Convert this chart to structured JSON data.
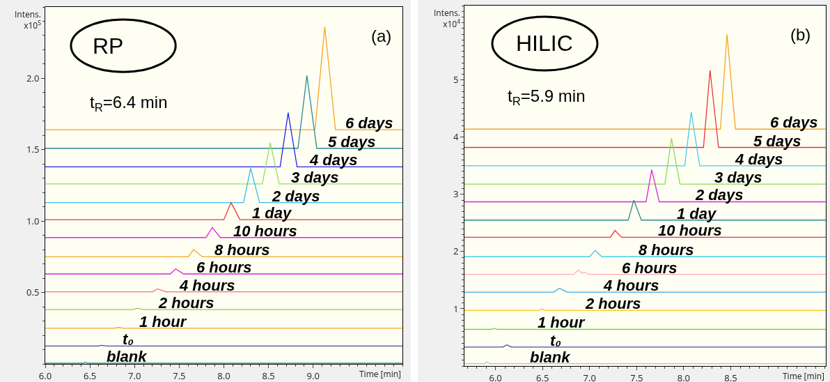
{
  "chart_data": [
    {
      "type": "line",
      "xlabel": "Time [min]",
      "ylabel": "Intens.\nx10$^{5}$",
      "annotations": [
        "RP",
        "(a)",
        "t$_{R}$=6.4 min"
      ],
      "xlim": [
        6.0,
        10.0
      ],
      "xticks": [
        {
          "value": 6,
          "label": "6.0"
        },
        6.5,
        {
          "value": 7,
          "label": "7.0"
        },
        7.5,
        {
          "value": 8,
          "label": "8.0"
        },
        8.5,
        {
          "value": 9,
          "label": "9.0"
        }
      ],
      "ylim": [
        0,
        2.5
      ],
      "yticks": [
        0.5,
        {
          "value": 1,
          "label": "1.0"
        },
        1.5,
        {
          "value": 2,
          "label": "2.0"
        }
      ],
      "grid": false,
      "legend": false,
      "marker": "none",
      "line_style": "solid",
      "series": [
        {
          "name": "6 days",
          "color": "#f5a623",
          "x": [
            6.0,
            9.02,
            9.13,
            9.25,
            10.0
          ],
          "values": [
            1.64,
            1.64,
            2.36,
            1.64,
            1.64
          ]
        },
        {
          "name": "5 days",
          "color": "#2a8c8c",
          "x": [
            6.0,
            8.83,
            8.93,
            9.04,
            10.0
          ],
          "values": [
            1.51,
            1.51,
            2.02,
            1.51,
            1.51
          ]
        },
        {
          "name": "4 days",
          "color": "#2222ee",
          "x": [
            6.0,
            8.63,
            8.72,
            8.82,
            10.0
          ],
          "values": [
            1.38,
            1.38,
            1.76,
            1.38,
            1.38
          ]
        },
        {
          "name": "3 days",
          "color": "#90e060",
          "x": [
            6.0,
            8.43,
            8.52,
            8.62,
            10.0
          ],
          "values": [
            1.26,
            1.26,
            1.55,
            1.26,
            1.26
          ]
        },
        {
          "name": "2 days",
          "color": "#33bbee",
          "x": [
            6.0,
            8.22,
            8.3,
            8.4,
            10.0
          ],
          "values": [
            1.13,
            1.13,
            1.37,
            1.13,
            1.13
          ]
        },
        {
          "name": "1 day",
          "color": "#ee3333",
          "x": [
            6.0,
            8.0,
            8.08,
            8.18,
            10.0
          ],
          "values": [
            1.01,
            1.01,
            1.13,
            1.01,
            1.01
          ]
        },
        {
          "name": "10 hours",
          "color": "#dd22dd",
          "x": [
            6.0,
            7.8,
            7.87,
            7.96,
            10.0
          ],
          "values": [
            0.885,
            0.885,
            0.955,
            0.885,
            0.885
          ]
        },
        {
          "name": "8 hours",
          "color": "#f5a623",
          "x": [
            6.0,
            7.6,
            7.66,
            7.76,
            10.0
          ],
          "values": [
            0.75,
            0.75,
            0.8,
            0.75,
            0.75
          ]
        },
        {
          "name": "6 hours",
          "color": "#dd22dd",
          "x": [
            6.0,
            7.4,
            7.46,
            7.55,
            10.0
          ],
          "values": [
            0.63,
            0.63,
            0.665,
            0.63,
            0.63
          ]
        },
        {
          "name": "4 hours",
          "color": "#f07070",
          "x": [
            6.0,
            7.2,
            7.26,
            7.35,
            10.0
          ],
          "values": [
            0.505,
            0.505,
            0.525,
            0.505,
            0.505
          ]
        },
        {
          "name": "2 hours",
          "color": "#99cc33",
          "x": [
            6.0,
            6.98,
            7.03,
            7.1,
            10.0
          ],
          "values": [
            0.38,
            0.38,
            0.39,
            0.38,
            0.38
          ]
        },
        {
          "name": "1 hour",
          "color": "#f5a623",
          "x": [
            6.0,
            6.77,
            6.82,
            6.88,
            10.0
          ],
          "values": [
            0.25,
            0.25,
            0.255,
            0.25,
            0.25
          ]
        },
        {
          "name": "t₀",
          "color": "#4a4aa0",
          "x": [
            6.0,
            6.59,
            6.63,
            6.69,
            10.0
          ],
          "values": [
            0.125,
            0.125,
            0.13,
            0.125,
            0.125
          ]
        },
        {
          "name": "blank",
          "color": "#2a9a8a",
          "x": [
            6.0,
            6.43,
            6.45,
            6.47,
            10.0
          ],
          "values": [
            0.005,
            0.005,
            0.012,
            0.005,
            0.005
          ]
        }
      ]
    },
    {
      "type": "line",
      "xlabel": "Time [min]",
      "ylabel": "Intens.\nx10$^{4}$",
      "annotations": [
        "HILIC",
        "(b)",
        "t$_{R}$=5.9 min"
      ],
      "xlim": [
        5.67,
        9.51
      ],
      "xticks": [
        {
          "value": 6,
          "label": "6.0"
        },
        6.5,
        {
          "value": 7,
          "label": "7.0"
        },
        7.5,
        {
          "value": 8,
          "label": "8.0"
        },
        8.5
      ],
      "ylim": [
        0,
        6.3
      ],
      "yticks": [
        1,
        2,
        3,
        4,
        5
      ],
      "grid": false,
      "legend": false,
      "marker": "none",
      "line_style": "solid",
      "series": [
        {
          "name": "6 days",
          "color": "#f5a623",
          "x": [
            5.67,
            8.39,
            8.46,
            8.55,
            9.51
          ],
          "values": [
            4.14,
            4.14,
            5.8,
            4.14,
            4.14
          ]
        },
        {
          "name": "5 days",
          "color": "#ee3333",
          "x": [
            5.67,
            8.21,
            8.28,
            8.37,
            9.51
          ],
          "values": [
            3.82,
            3.82,
            5.17,
            3.82,
            3.82
          ]
        },
        {
          "name": "4 days",
          "color": "#44ccee",
          "x": [
            5.67,
            8.01,
            8.08,
            8.17,
            9.51
          ],
          "values": [
            3.5,
            3.5,
            4.44,
            3.5,
            3.5
          ]
        },
        {
          "name": "3 days",
          "color": "#88dd55",
          "x": [
            5.67,
            7.8,
            7.87,
            7.96,
            9.51
          ],
          "values": [
            3.18,
            3.18,
            3.98,
            3.18,
            3.18
          ]
        },
        {
          "name": "2 days",
          "color": "#dd22dd",
          "x": [
            5.67,
            7.6,
            7.66,
            7.74,
            9.51
          ],
          "values": [
            2.87,
            2.87,
            3.43,
            2.87,
            2.87
          ]
        },
        {
          "name": "1 day",
          "color": "#2a8c8c",
          "x": [
            5.67,
            7.41,
            7.47,
            7.55,
            9.51
          ],
          "values": [
            2.55,
            2.55,
            2.9,
            2.55,
            2.55
          ]
        },
        {
          "name": "10 hours",
          "color": "#ee3333",
          "x": [
            5.67,
            7.22,
            7.27,
            7.34,
            9.51
          ],
          "values": [
            2.25,
            2.25,
            2.37,
            2.25,
            2.25
          ]
        },
        {
          "name": "8 hours",
          "color": "#44ccee",
          "x": [
            5.67,
            7.0,
            7.06,
            7.13,
            9.51
          ],
          "values": [
            1.91,
            1.91,
            2.02,
            1.91,
            1.91
          ]
        },
        {
          "name": "6 hours",
          "color": "#ffaabb",
          "x": [
            5.67,
            6.83,
            6.88,
            6.92,
            6.95,
            6.99,
            9.51
          ],
          "values": [
            1.6,
            1.6,
            1.68,
            1.62,
            1.64,
            1.6,
            1.6
          ]
        },
        {
          "name": "4 hours",
          "color": "#33aaee",
          "x": [
            5.67,
            6.62,
            6.68,
            6.76,
            9.51
          ],
          "values": [
            1.29,
            1.29,
            1.36,
            1.29,
            1.29
          ]
        },
        {
          "name": "2 hours",
          "color": "#f5c518",
          "x": [
            5.67,
            6.46,
            6.49,
            6.52,
            9.51
          ],
          "values": [
            0.97,
            0.97,
            1.0,
            0.97,
            0.97
          ]
        },
        {
          "name": "1 hour",
          "color": "#66dd33",
          "x": [
            5.67,
            5.96,
            5.99,
            6.02,
            9.51
          ],
          "values": [
            0.64,
            0.64,
            0.66,
            0.64,
            0.64
          ]
        },
        {
          "name": "t₀",
          "color": "#4a4aa0",
          "x": [
            5.67,
            6.08,
            6.12,
            6.17,
            9.51
          ],
          "values": [
            0.33,
            0.33,
            0.37,
            0.33,
            0.33
          ]
        },
        {
          "name": "blank",
          "color": "#bbbbbb",
          "x": [
            5.67,
            5.88,
            5.91,
            5.94,
            9.51
          ],
          "values": [
            0.04,
            0.04,
            0.07,
            0.04,
            0.04
          ]
        }
      ]
    }
  ]
}
